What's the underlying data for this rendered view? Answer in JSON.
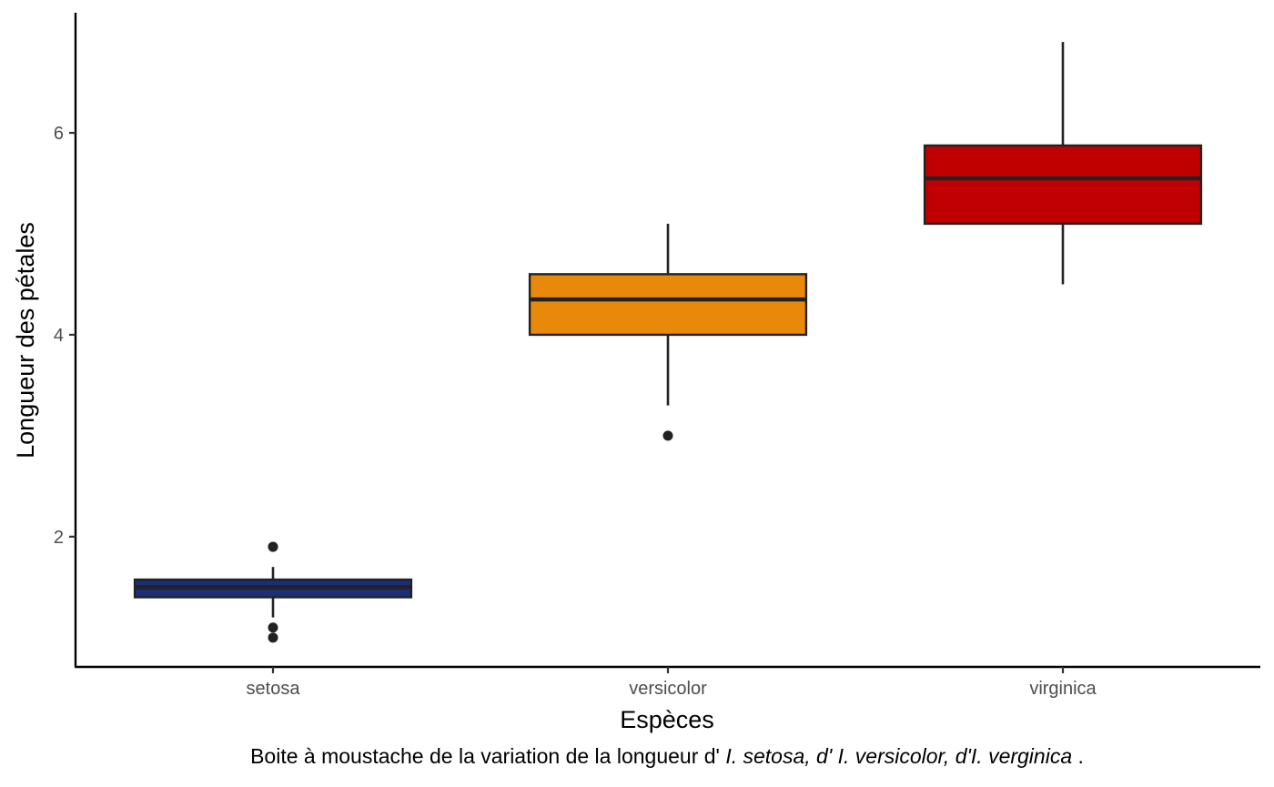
{
  "chart_data": {
    "type": "boxplot",
    "xlabel": "Espèces",
    "ylabel": "Longueur des pétales",
    "caption": {
      "prefix": "Boite à moustache de la variation de la longueur d' ",
      "italic": "I. setosa, d' I. versicolor, d'I. verginica",
      "suffix": " ."
    },
    "categories": [
      "setosa",
      "versicolor",
      "virginica"
    ],
    "y_ticks": [
      "2",
      "4",
      "6"
    ],
    "ylim": [
      0.71,
      7.19
    ],
    "grid": false,
    "legend": "none",
    "boxes": [
      {
        "category": "setosa",
        "color": "#1c2d7a",
        "q1": 1.4,
        "median": 1.5,
        "q3": 1.575,
        "whisker_low": 1.2,
        "whisker_high": 1.7,
        "outliers": [
          1.0,
          1.1,
          1.9,
          1.9
        ]
      },
      {
        "category": "versicolor",
        "color": "#e8890a",
        "q1": 4.0,
        "median": 4.35,
        "q3": 4.6,
        "whisker_low": 3.3,
        "whisker_high": 5.1,
        "outliers": [
          3.0
        ]
      },
      {
        "category": "virginica",
        "color": "#c00000",
        "q1": 5.1,
        "median": 5.55,
        "q3": 5.875,
        "whisker_low": 4.5,
        "whisker_high": 6.9,
        "outliers": []
      }
    ]
  }
}
